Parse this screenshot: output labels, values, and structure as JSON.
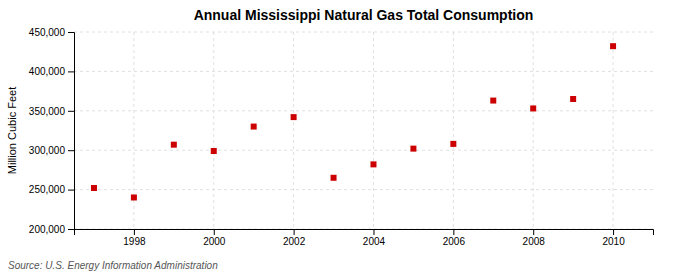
{
  "chart_data": {
    "type": "scatter",
    "title": "Annual Mississippi Natural Gas Total Consumption",
    "ylabel": "Million Cubic Feet",
    "source": "Source: U.S. Energy Information Administration",
    "x": [
      1997,
      1998,
      1999,
      2000,
      2001,
      2002,
      2003,
      2004,
      2005,
      2006,
      2007,
      2008,
      2009,
      2010
    ],
    "values": [
      252000,
      240000,
      307000,
      299000,
      330000,
      342000,
      265000,
      282000,
      302000,
      308000,
      363000,
      353000,
      365000,
      432000
    ],
    "color": "#cc0000",
    "marker": "square",
    "xlim": [
      1996.5,
      2011
    ],
    "ylim": [
      200000,
      450000
    ],
    "xticks": [
      1998,
      2000,
      2002,
      2004,
      2006,
      2008,
      2010
    ],
    "yticks": [
      {
        "value": 200000,
        "label": "200,000"
      },
      {
        "value": 250000,
        "label": "250,000"
      },
      {
        "value": 300000,
        "label": "300,000"
      },
      {
        "value": 350000,
        "label": "350,000"
      },
      {
        "value": 400000,
        "label": "400,000"
      },
      {
        "value": 450000,
        "label": "450,000"
      }
    ],
    "grid": true
  }
}
